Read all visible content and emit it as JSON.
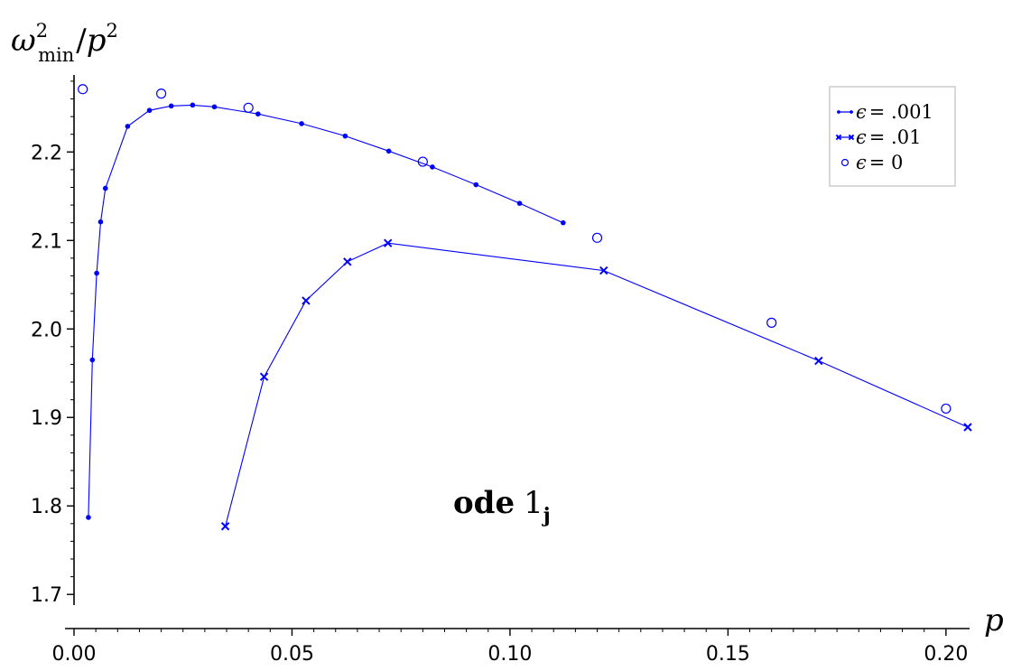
{
  "chart_data": {
    "type": "line",
    "title": "",
    "ylabel": "ω²min/p²",
    "ylabel_parts": {
      "base": "ω",
      "sup": "2",
      "sub": "min",
      "sep": "/",
      "var": "p",
      "var_sup": "2"
    },
    "xlabel": "p",
    "xlim": [
      0.0,
      0.205
    ],
    "ylim": [
      1.69,
      2.285
    ],
    "xticks": [
      {
        "value": 0.0,
        "label": "0.00"
      },
      {
        "value": 0.05,
        "label": "0.05"
      },
      {
        "value": 0.1,
        "label": "0.10"
      },
      {
        "value": 0.15,
        "label": "0.15"
      },
      {
        "value": 0.2,
        "label": "0.20"
      }
    ],
    "yticks": [
      {
        "value": 1.7,
        "label": "1.7"
      },
      {
        "value": 1.8,
        "label": "1.8"
      },
      {
        "value": 1.9,
        "label": "1.9"
      },
      {
        "value": 2.0,
        "label": "2.0"
      },
      {
        "value": 2.1,
        "label": "2.1"
      },
      {
        "value": 2.2,
        "label": "2.2"
      }
    ],
    "grid": false,
    "legend_position": "top-right",
    "annotation": {
      "bold": "ode",
      "math": "1",
      "math_sub": "j",
      "x": 0.1,
      "y": 1.8
    },
    "series": [
      {
        "name": "ϵ = .001",
        "legend_prefix": "ϵ",
        "legend_value": ".001",
        "marker": "dot",
        "line": true,
        "color": "#0000ff",
        "x": [
          0.0033,
          0.0042,
          0.0052,
          0.0061,
          0.0072,
          0.0123,
          0.0173,
          0.0223,
          0.0272,
          0.0322,
          0.0422,
          0.0522,
          0.0622,
          0.0722,
          0.0822,
          0.0922,
          0.1022,
          0.1122
        ],
        "y": [
          1.787,
          1.965,
          2.063,
          2.121,
          2.159,
          2.229,
          2.247,
          2.252,
          2.253,
          2.251,
          2.243,
          2.232,
          2.218,
          2.201,
          2.183,
          2.163,
          2.142,
          2.12
        ]
      },
      {
        "name": "ϵ = .01",
        "legend_prefix": "ϵ",
        "legend_value": ".01",
        "marker": "x",
        "line": true,
        "color": "#0000ff",
        "x": [
          0.0347,
          0.0436,
          0.0532,
          0.0627,
          0.072,
          0.1215,
          0.1708,
          0.205
        ],
        "y": [
          1.777,
          1.946,
          2.032,
          2.076,
          2.097,
          2.066,
          1.964,
          1.889
        ]
      },
      {
        "name": "ϵ = 0",
        "legend_prefix": "ϵ",
        "legend_value": "0",
        "marker": "circle",
        "line": false,
        "color": "#0000ff",
        "x": [
          0.002,
          0.02,
          0.04,
          0.08,
          0.12,
          0.16,
          0.2
        ],
        "y": [
          2.271,
          2.266,
          2.25,
          2.189,
          2.103,
          2.007,
          1.91
        ]
      }
    ]
  }
}
